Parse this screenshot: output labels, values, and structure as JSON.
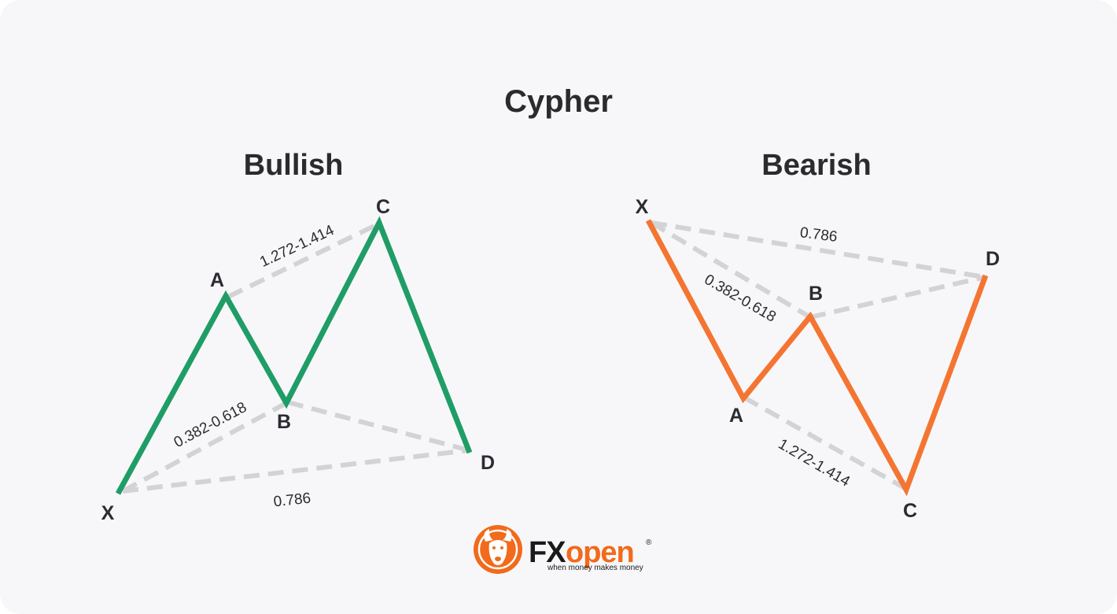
{
  "title": "Cypher",
  "colors": {
    "bullish": "#1f9d67",
    "bearish": "#f47532",
    "guide": "#d3d3d6",
    "text": "#2b2b33"
  },
  "panels": [
    {
      "name": "Bullish",
      "points": {
        "X": "X",
        "A": "A",
        "B": "B",
        "C": "C",
        "D": "D"
      },
      "ratios": {
        "ab_xa": "0.382-0.618",
        "bc": "1.272-1.414",
        "xd": "0.786"
      }
    },
    {
      "name": "Bearish",
      "points": {
        "X": "X",
        "A": "A",
        "B": "B",
        "C": "C",
        "D": "D"
      },
      "ratios": {
        "ab_xa": "0.382-0.618",
        "bc": "1.272-1.414",
        "xd": "0.786"
      }
    }
  ],
  "brand": {
    "fx": "FX",
    "open": "open",
    "tagline": "when money makes money",
    "registered": "®",
    "logo": "bull-logo-icon"
  }
}
